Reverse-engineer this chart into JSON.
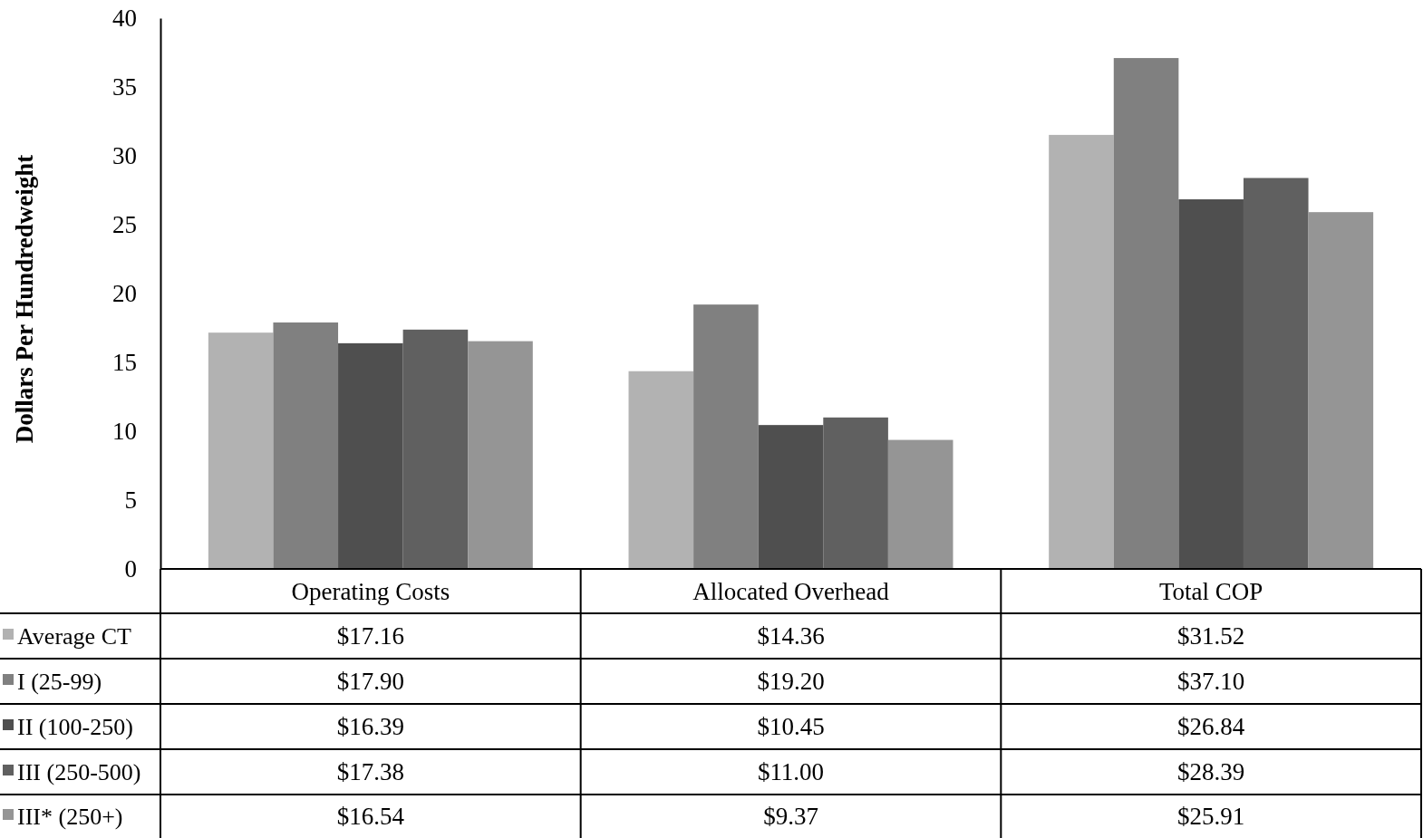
{
  "chart_data": {
    "type": "bar",
    "ylabel": "Dollars Per Hundredweight",
    "categories": [
      "Operating Costs",
      "Allocated Overhead",
      "Total COP"
    ],
    "ylim": [
      0,
      40
    ],
    "yticks": [
      0,
      5,
      10,
      15,
      20,
      25,
      30,
      35,
      40
    ],
    "grid": false,
    "legend": "bottom left",
    "series": [
      {
        "name": "Average CT",
        "color": "#b2b2b2",
        "values": [
          17.16,
          14.36,
          31.52
        ],
        "value_labels": [
          "$17.16",
          "$14.36",
          "$31.52"
        ]
      },
      {
        "name": "I (25-99)",
        "color": "#808080",
        "values": [
          17.9,
          19.2,
          37.1
        ],
        "value_labels": [
          "$17.90",
          "$19.20",
          "$37.10"
        ]
      },
      {
        "name": "II (100-250)",
        "color": "#4f4f4f",
        "values": [
          16.39,
          10.45,
          26.84
        ],
        "value_labels": [
          "$16.39",
          "$10.45",
          "$26.84"
        ]
      },
      {
        "name": "III (250-500)",
        "color": "#606060",
        "values": [
          17.38,
          11.0,
          28.39
        ],
        "value_labels": [
          "$17.38",
          "$11.00",
          "$28.39"
        ]
      },
      {
        "name": "III* (250+)",
        "color": "#959595",
        "values": [
          16.54,
          9.37,
          25.91
        ],
        "value_labels": [
          "$16.54",
          "$9.37",
          "$25.91"
        ]
      }
    ]
  }
}
